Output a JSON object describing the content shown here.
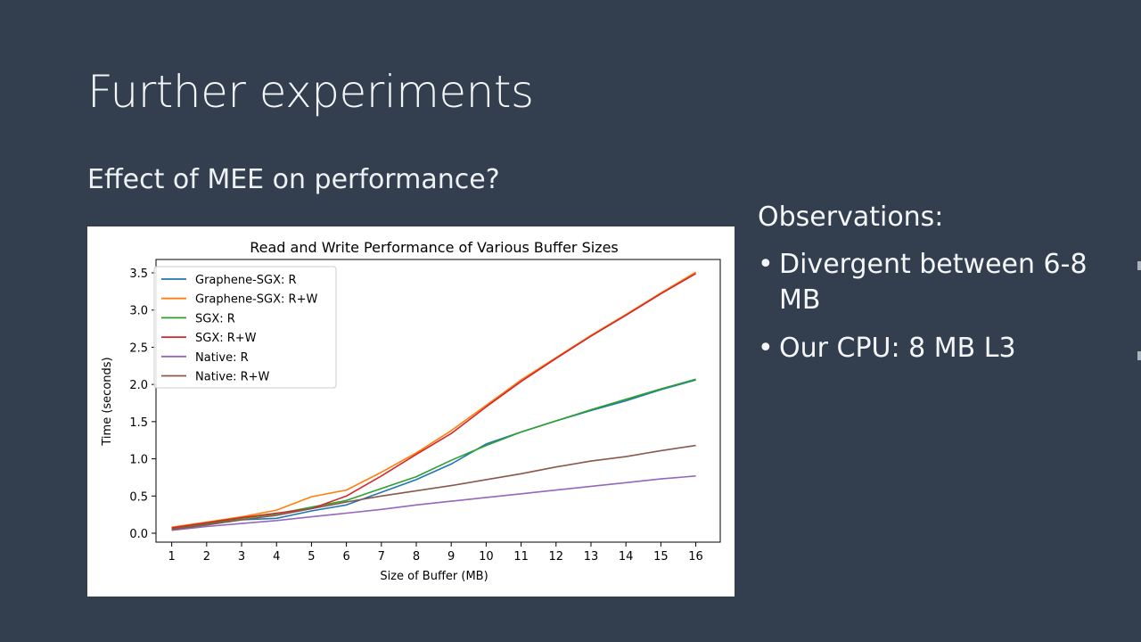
{
  "slide": {
    "title": "Further experiments",
    "subtitle": "Effect of MEE on performance?",
    "observations": {
      "title": "Observations:",
      "bullets": [
        "Divergent between 6-8 MB",
        "Our CPU: 8 MB L3"
      ]
    }
  },
  "chart_data": {
    "type": "line",
    "title": "Read and Write Performance of Various Buffer Sizes",
    "xlabel": "Size of Buffer (MB)",
    "ylabel": "Time (seconds)",
    "x": [
      1,
      2,
      3,
      4,
      5,
      6,
      7,
      8,
      9,
      10,
      11,
      12,
      13,
      14,
      15,
      16
    ],
    "xlim": [
      0.55,
      16.7
    ],
    "ylim": [
      -0.12,
      3.68
    ],
    "yticks": [
      0.0,
      0.5,
      1.0,
      1.5,
      2.0,
      2.5,
      3.0,
      3.5
    ],
    "ytick_labels": [
      "0.0",
      "0.5",
      "1.0",
      "1.5",
      "2.0",
      "2.5",
      "3.0",
      "3.5"
    ],
    "grid": false,
    "legend_position": "top-left",
    "series": [
      {
        "name": "Graphene-SGX: R",
        "color": "#1f77b4",
        "values": [
          0.06,
          0.12,
          0.18,
          0.2,
          0.3,
          0.38,
          0.55,
          0.72,
          0.93,
          1.2,
          1.36,
          1.51,
          1.65,
          1.78,
          1.93,
          2.06
        ]
      },
      {
        "name": "Graphene-SGX: R+W",
        "color": "#ff7f0e",
        "values": [
          0.08,
          0.15,
          0.22,
          0.31,
          0.49,
          0.58,
          0.82,
          1.08,
          1.38,
          1.72,
          2.06,
          2.36,
          2.66,
          2.94,
          3.23,
          3.51
        ]
      },
      {
        "name": "SGX: R",
        "color": "#2ca02c",
        "values": [
          0.06,
          0.13,
          0.2,
          0.26,
          0.35,
          0.44,
          0.6,
          0.76,
          0.98,
          1.18,
          1.36,
          1.51,
          1.66,
          1.8,
          1.94,
          2.07
        ]
      },
      {
        "name": "SGX: R+W",
        "color": "#d62728",
        "values": [
          0.07,
          0.14,
          0.21,
          0.27,
          0.33,
          0.5,
          0.77,
          1.06,
          1.34,
          1.7,
          2.04,
          2.35,
          2.65,
          2.93,
          3.22,
          3.49
        ]
      },
      {
        "name": "Native: R",
        "color": "#9467bd",
        "values": [
          0.04,
          0.09,
          0.13,
          0.17,
          0.22,
          0.27,
          0.32,
          0.38,
          0.43,
          0.48,
          0.53,
          0.58,
          0.63,
          0.68,
          0.73,
          0.77
        ]
      },
      {
        "name": "Native: R+W",
        "color": "#8c564b",
        "values": [
          0.05,
          0.11,
          0.18,
          0.24,
          0.33,
          0.42,
          0.5,
          0.57,
          0.64,
          0.72,
          0.8,
          0.89,
          0.97,
          1.03,
          1.11,
          1.18
        ]
      }
    ]
  }
}
